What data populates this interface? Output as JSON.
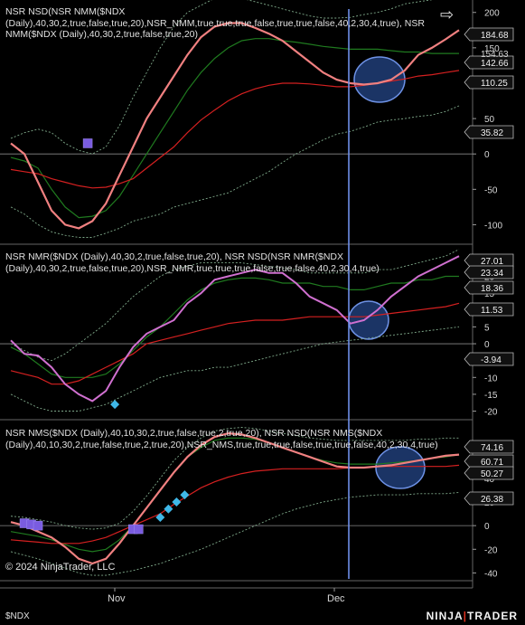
{
  "instrument": "$NDX",
  "copyright": "© 2024 NinjaTrader, LLC",
  "logo": {
    "left": "NINJA",
    "right": "TRADER"
  },
  "colors": {
    "price_line": "#f08080",
    "price_line_p2": "#d070d0",
    "red_line": "#d42020",
    "green_line": "#1f7a1f",
    "band": "#7fa98a",
    "vline": "#6f8fe8",
    "circle_fill": "#1e3a70",
    "circle_stroke": "#7aa2ff",
    "marker_square": "#7a5ce0",
    "marker_diamond": "#3fb8e8",
    "tag_bg": "#111",
    "tag_border": "#bbb"
  },
  "panels": [
    {
      "title": "NSR NSD(NSR NMM($NDX (Daily),40,30,2,true,false,true,20),NSR_NMM,true,true,true,false,true,true,false,40,2,30,4,true), NSR NMM($NDX (Daily),40,30,2,true,false,true,20)",
      "yticks": [
        -100,
        -50,
        0,
        50,
        100,
        150,
        200
      ],
      "tags": [
        184.68,
        142.66,
        110.25,
        35.82
      ],
      "partial_tag": 154.63
    },
    {
      "title": "NSR NMR($NDX (Daily),40,30,2,true,false,true,20), NSR NSD(NSR NMR($NDX (Daily),40,30,2,true,false,true,20),NSR_NMR,true,true,true,false,true,false,40,2,30,4,true)",
      "yticks": [
        -20,
        -15,
        -10,
        -5,
        0,
        5,
        10,
        15,
        20,
        25
      ],
      "tags": [
        27.01,
        23.34,
        18.36,
        11.53,
        -3.94
      ]
    },
    {
      "title": "NSR NMS($NDX (Daily),40,10,30,2,true,false,true,2,true,20), NSR NSD(NSR NMS($NDX (Daily),40,10,30,2,true,false,true,2,true,20),NSR_NMS,true,true,true,false,true,true,false,40,2,30,4,true)",
      "yticks": [
        -40,
        -20,
        0,
        20,
        40
      ],
      "tags": [
        74.16,
        60.71,
        50.27,
        26.38
      ]
    }
  ],
  "xaxis": {
    "labels": [
      "Nov",
      "Dec"
    ]
  },
  "chart_data": [
    {
      "type": "line",
      "panel": 1,
      "ylim": [
        -125,
        215
      ],
      "series": [
        {
          "key": "price",
          "values": [
            15,
            0,
            -40,
            -80,
            -100,
            -105,
            -95,
            -70,
            -30,
            10,
            50,
            80,
            110,
            140,
            165,
            180,
            185,
            185,
            178,
            170,
            160,
            145,
            130,
            115,
            105,
            100,
            98,
            100,
            105,
            118,
            140,
            150,
            162,
            175
          ]
        },
        {
          "key": "red",
          "values": [
            -22,
            -25,
            -28,
            -35,
            -40,
            -45,
            -48,
            -47,
            -42,
            -35,
            -20,
            -5,
            10,
            30,
            48,
            62,
            75,
            85,
            92,
            97,
            100,
            100,
            99,
            97,
            95,
            95,
            97,
            100,
            103,
            106,
            110,
            112,
            115,
            118
          ]
        },
        {
          "key": "green",
          "values": [
            -5,
            -10,
            -20,
            -50,
            -75,
            -90,
            -88,
            -80,
            -60,
            -30,
            0,
            30,
            60,
            90,
            115,
            135,
            150,
            160,
            163,
            163,
            160,
            158,
            155,
            152,
            150,
            148,
            148,
            148,
            146,
            144,
            144,
            142,
            142,
            142
          ]
        },
        {
          "key": "upper",
          "values": [
            22,
            30,
            35,
            30,
            15,
            5,
            0,
            10,
            40,
            80,
            115,
            150,
            180,
            200,
            210,
            220,
            222,
            220,
            215,
            210,
            205,
            200,
            195,
            192,
            192,
            193,
            197,
            200,
            205,
            212,
            215,
            218,
            220,
            222
          ]
        },
        {
          "key": "lower",
          "values": [
            -75,
            -85,
            -100,
            -110,
            -115,
            -118,
            -118,
            -112,
            -105,
            -95,
            -90,
            -85,
            -75,
            -70,
            -65,
            -60,
            -55,
            -45,
            -35,
            -25,
            -12,
            0,
            10,
            20,
            28,
            32,
            38,
            45,
            48,
            50,
            53,
            55,
            60,
            68
          ]
        }
      ],
      "markers": [
        {
          "shape": "square",
          "i": 3,
          "y": 15
        }
      ]
    },
    {
      "type": "line",
      "panel": 2,
      "ylim": [
        -22,
        29
      ],
      "series": [
        {
          "key": "price",
          "values": [
            1,
            -3,
            -3.5,
            -7,
            -12,
            -15,
            -17,
            -14,
            -7,
            -1,
            3,
            5,
            7,
            12,
            15,
            19,
            20,
            21,
            22,
            21,
            21,
            18,
            14,
            12,
            10,
            6,
            7,
            10,
            14,
            17,
            20,
            22,
            24,
            26
          ]
        },
        {
          "key": "red",
          "values": [
            -8,
            -9,
            -10,
            -12,
            -12,
            -11,
            -9,
            -7,
            -5,
            -3,
            0,
            1,
            2,
            3,
            4,
            5,
            6,
            6.5,
            7,
            7,
            7,
            7.5,
            8,
            8,
            8,
            8,
            8,
            8.5,
            9,
            9.5,
            10,
            10.5,
            11,
            12
          ]
        },
        {
          "key": "green",
          "values": [
            -1,
            -3,
            -6,
            -9,
            -10,
            -10,
            -10,
            -9,
            -6,
            -2,
            2,
            5,
            9,
            13,
            16,
            18,
            19,
            19.5,
            19.5,
            19,
            18,
            18,
            18,
            17,
            17,
            16,
            16,
            17,
            18,
            18,
            19,
            19,
            20,
            20
          ]
        },
        {
          "key": "upper",
          "values": [
            0,
            -2,
            -4,
            -5,
            -3,
            0,
            3,
            6,
            10,
            14,
            17,
            20,
            22,
            23,
            24,
            24,
            24,
            24,
            23.5,
            23,
            22.5,
            22,
            21,
            21,
            21,
            21,
            21,
            22,
            22,
            23,
            24,
            25,
            26,
            28
          ]
        },
        {
          "key": "lower",
          "values": [
            -15,
            -17,
            -19,
            -20,
            -20,
            -20,
            -19,
            -18,
            -16,
            -14,
            -12,
            -10,
            -9,
            -8,
            -8,
            -7,
            -7,
            -6,
            -5,
            -4,
            -3,
            -2,
            -1,
            0,
            0.5,
            1,
            1.5,
            2,
            2.5,
            3,
            3.5,
            4,
            4.5,
            5
          ]
        }
      ],
      "markers": [
        {
          "shape": "diamond",
          "i": 3,
          "y": -18
        }
      ]
    },
    {
      "type": "line",
      "panel": 3,
      "ylim": [
        -45,
        88
      ],
      "series": [
        {
          "key": "price",
          "values": [
            3,
            0,
            -5,
            -10,
            -18,
            -28,
            -32,
            -28,
            -15,
            0,
            15,
            30,
            45,
            58,
            68,
            75,
            78,
            77,
            74,
            70,
            66,
            62,
            58,
            54,
            50,
            49,
            49,
            50,
            51,
            53,
            55,
            57,
            59,
            60
          ]
        },
        {
          "key": "red",
          "values": [
            -12,
            -13,
            -14,
            -15,
            -15,
            -15,
            -13,
            -10,
            -5,
            0,
            5,
            10,
            18,
            25,
            32,
            37,
            41,
            44,
            46,
            47,
            48,
            48,
            48,
            48,
            48,
            49,
            49,
            50,
            50,
            50,
            50,
            50,
            50,
            51
          ]
        },
        {
          "key": "green",
          "values": [
            -5,
            -7,
            -9,
            -12,
            -16,
            -20,
            -22,
            -20,
            -12,
            0,
            15,
            30,
            45,
            58,
            66,
            72,
            74,
            74,
            73,
            70,
            66,
            62,
            58,
            55,
            53,
            52,
            52,
            52,
            53,
            54,
            55,
            57,
            58,
            60
          ]
        },
        {
          "key": "upper",
          "values": [
            8,
            7,
            5,
            3,
            0,
            -2,
            -3,
            -2,
            2,
            12,
            25,
            40,
            55,
            66,
            74,
            80,
            82,
            83,
            82,
            80,
            78,
            76,
            74,
            73,
            72,
            72,
            72,
            72,
            72,
            72,
            73,
            73,
            74,
            74
          ]
        },
        {
          "key": "lower",
          "values": [
            -22,
            -25,
            -28,
            -32,
            -36,
            -40,
            -42,
            -42,
            -40,
            -38,
            -35,
            -32,
            -28,
            -24,
            -20,
            -15,
            -10,
            -5,
            0,
            5,
            10,
            14,
            17,
            20,
            22,
            24,
            25,
            26,
            26,
            26,
            27,
            27,
            27,
            28
          ]
        }
      ],
      "markers": [
        {
          "shape": "square",
          "i": 1,
          "y": 2
        },
        {
          "shape": "square",
          "i": 1.5,
          "y": 1
        },
        {
          "shape": "square",
          "i": 2,
          "y": 0
        },
        {
          "shape": "square",
          "i": 9,
          "y": -3
        },
        {
          "shape": "square",
          "i": 9.4,
          "y": -3
        },
        {
          "shape": "diamond",
          "i": 11,
          "y": 7
        },
        {
          "shape": "diamond",
          "i": 11.6,
          "y": 14
        },
        {
          "shape": "diamond",
          "i": 12.2,
          "y": 20
        },
        {
          "shape": "diamond",
          "i": 12.8,
          "y": 26
        }
      ]
    }
  ]
}
